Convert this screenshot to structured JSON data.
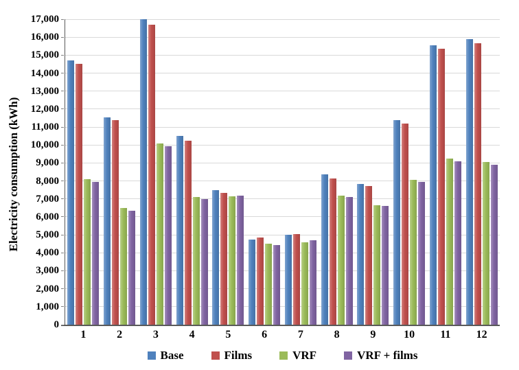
{
  "chart_data": {
    "type": "bar",
    "title": "",
    "xlabel": "",
    "ylabel": "Electricity consumption (kWh)",
    "ylim": [
      0,
      17000
    ],
    "ytick_step": 1000,
    "grid": true,
    "legend_position": "bottom",
    "categories": [
      "1",
      "2",
      "3",
      "4",
      "5",
      "6",
      "7",
      "8",
      "9",
      "10",
      "11",
      "12"
    ],
    "y_tick_labels": [
      "0",
      "1,000",
      "2,000",
      "3,000",
      "4,000",
      "5,000",
      "6,000",
      "7,000",
      "8,000",
      "9,000",
      "10,000",
      "11,000",
      "12,000",
      "13,000",
      "14,000",
      "15,000",
      "16,000",
      "17,000"
    ],
    "series": [
      {
        "name": "Base",
        "color": "#4F81BD",
        "values": [
          14700,
          11550,
          17000,
          10500,
          7500,
          4750,
          5000,
          8350,
          7850,
          11400,
          15550,
          15900
        ]
      },
      {
        "name": "Films",
        "color": "#C0504D",
        "values": [
          14500,
          11400,
          16700,
          10250,
          7350,
          4850,
          5050,
          8150,
          7700,
          11200,
          15350,
          15650
        ]
      },
      {
        "name": "VRF",
        "color": "#9BBB59",
        "values": [
          8100,
          6500,
          10100,
          7100,
          7150,
          4500,
          4600,
          7200,
          6650,
          8050,
          9250,
          9050
        ]
      },
      {
        "name": "VRF + films",
        "color": "#8064A2",
        "values": [
          7950,
          6350,
          9950,
          7000,
          7200,
          4450,
          4700,
          7100,
          6600,
          7950,
          9100,
          8900
        ]
      }
    ],
    "colors": {
      "gridline": "#d9d9d9",
      "axis": "#595959",
      "text": "#000000",
      "background": "#ffffff"
    }
  }
}
